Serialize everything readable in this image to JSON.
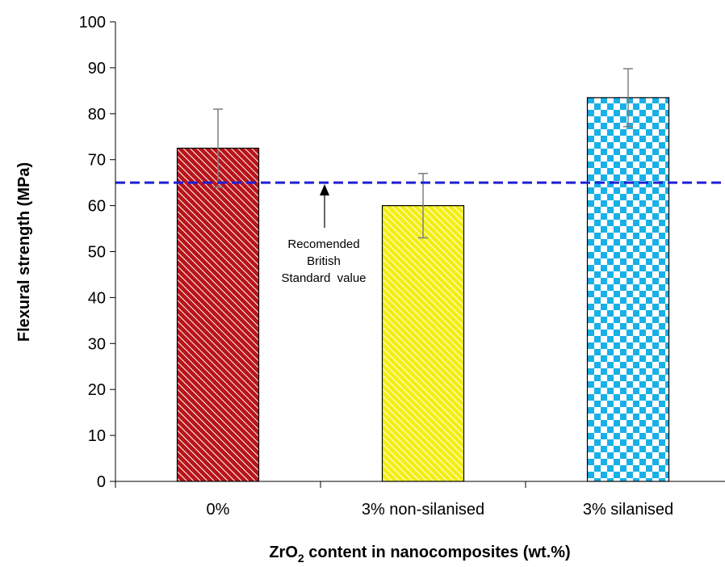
{
  "chart_data": {
    "type": "bar",
    "categories": [
      "0%",
      "3% non-silanised",
      "3% silanised"
    ],
    "values": [
      72.5,
      60,
      83.5
    ],
    "errors": [
      8.5,
      7,
      6.3
    ],
    "ylim": [
      0,
      100
    ],
    "yticks": [
      0,
      10,
      20,
      30,
      40,
      50,
      60,
      70,
      80,
      90,
      100
    ],
    "ylabel": "Flexural strength (MPa)",
    "xlabel": {
      "pre": "ZrO",
      "sub": "2",
      "post": " content in nanocomposites (wt.%)"
    },
    "reference_line": {
      "value": 65,
      "color": "#1f1fd6",
      "style": "dashed"
    },
    "annotation": {
      "lines": [
        "Recomended",
        "British",
        "Standard  value"
      ],
      "points_to": 65
    },
    "bar_colors": [
      "#c0161b",
      "#f3f01a",
      "#18b0e6"
    ],
    "bar_patterns": [
      "diagonal-stripes",
      "diagonal-stripes",
      "checkerboard"
    ],
    "grid": false,
    "legend": "none"
  }
}
